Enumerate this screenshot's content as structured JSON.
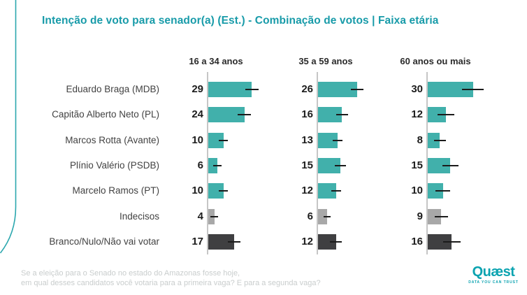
{
  "title": "Intenção de voto para senador(a) (Est.) - Combinação de votos | Faixa etária",
  "chart_data": {
    "type": "bar",
    "orientation": "horizontal",
    "title": "Intenção de voto para senador(a) (Est.) - Combinação de votos | Faixa etária",
    "groups": [
      "16 a 34 anos",
      "35 a 59 anos",
      "60 anos ou mais"
    ],
    "categories": [
      "Eduardo Braga (MDB)",
      "Capitão Alberto Neto (PL)",
      "Marcos Rotta (Avante)",
      "Plínio Valério (PSDB)",
      "Marcelo Ramos (PT)",
      "Indecisos",
      "Branco/Nulo/Não vai votar"
    ],
    "series": [
      {
        "name": "16 a 34 anos",
        "values": [
          29,
          24,
          10,
          6,
          10,
          4,
          17
        ],
        "moe": [
          4.5,
          4.3,
          3.0,
          2.8,
          3.0,
          2.5,
          4.2
        ]
      },
      {
        "name": "35 a 59 anos",
        "values": [
          26,
          16,
          13,
          15,
          12,
          6,
          12
        ],
        "moe": [
          4.3,
          4.0,
          3.2,
          3.8,
          3.3,
          2.5,
          4.0
        ]
      },
      {
        "name": "60 anos ou mais",
        "values": [
          30,
          12,
          8,
          15,
          10,
          9,
          16
        ],
        "moe": [
          7.0,
          5.5,
          4.0,
          5.3,
          5.0,
          4.5,
          6.0
        ]
      }
    ],
    "row_color_keys": [
      "teal",
      "teal",
      "teal",
      "teal",
      "teal",
      "gray",
      "dark"
    ],
    "palette": {
      "teal": "#41b0ab",
      "gray": "#a8a8a8",
      "dark": "#3f3f41"
    },
    "error_bar_color": "#1b1b1b",
    "axis_line_color": "#c6c6c6",
    "xlim": [
      0,
      35
    ],
    "grid": false,
    "legend": false,
    "data_labels": "left-of-axis"
  },
  "footer": {
    "question_line1": "Se a eleição para o Senado no estado do Amazonas fosse hoje,",
    "question_line2": "em qual desses candidatos você votaria para a primeira vaga? E para a segunda vaga?"
  },
  "logo": {
    "wordmark": "Quæst",
    "tagline": "DATA YOU CAN TRUST",
    "check_glyph": "✓",
    "brand_color": "#0ba3b0"
  },
  "colors": {
    "title": "#189ba9",
    "decorative_line": "#2ba7ae",
    "header_text": "#2a2a2a",
    "label_text": "#424242",
    "value_text": "#1c1c1c",
    "question_text": "#c9cdcd",
    "background": "#ffffff"
  }
}
